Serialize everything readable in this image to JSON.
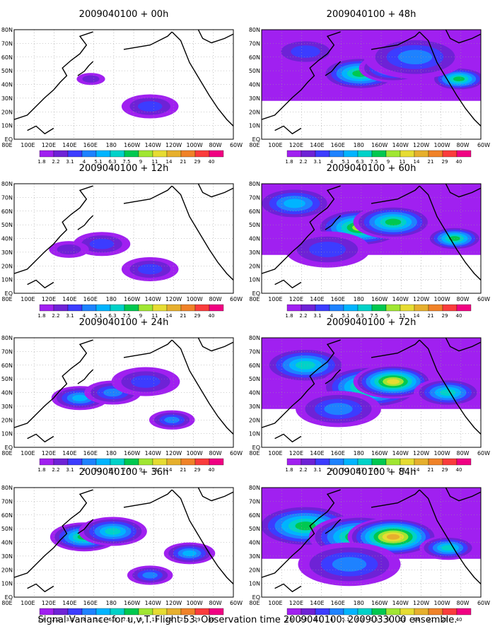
{
  "panels": [
    {
      "title": "2009040100 + 00h",
      "intensity": 0
    },
    {
      "title": "2009040100 + 48h",
      "intensity": 4
    },
    {
      "title": "2009040100 + 12h",
      "intensity": 1
    },
    {
      "title": "2009040100 + 60h",
      "intensity": 5
    },
    {
      "title": "2009040100 + 24h",
      "intensity": 2
    },
    {
      "title": "2009040100 + 72h",
      "intensity": 6
    },
    {
      "title": "2009040100 + 36h",
      "intensity": 3
    },
    {
      "title": "2009040100 + 84h",
      "intensity": 7
    }
  ],
  "x_ticks": [
    "80E",
    "100E",
    "120E",
    "140E",
    "160E",
    "180",
    "160W",
    "140W",
    "120W",
    "100W",
    "80W",
    "60W"
  ],
  "y_ticks": [
    "EQ",
    "10N",
    "20N",
    "30N",
    "40N",
    "50N",
    "60N",
    "70N",
    "80N"
  ],
  "colorbar": {
    "labels": [
      "1.8",
      "2.2",
      "3.1",
      "4",
      "5.1",
      "6.3",
      "7.5",
      "9",
      "11",
      "14",
      "21",
      "29",
      "40"
    ],
    "colors": [
      "#a020f0",
      "#6e22d6",
      "#3c3cff",
      "#1e82ff",
      "#00b4ff",
      "#00d2c8",
      "#00c850",
      "#a0e632",
      "#e6dc32",
      "#e6af2d",
      "#f08228",
      "#fa3c3c",
      "#f00082"
    ]
  },
  "caption": "Signal Variance for u,v,T. Flight 53. Observation time 2009040100. 2009033000 ensemble."
}
